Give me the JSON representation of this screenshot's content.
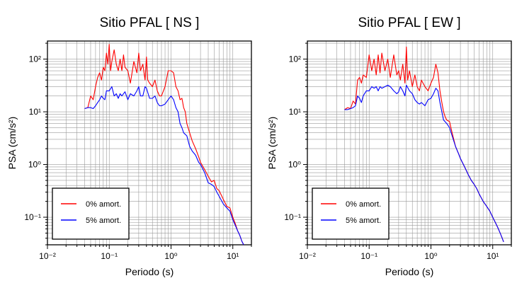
{
  "chart_data": [
    {
      "type": "line",
      "title": "Sitio PFAL [ NS ]",
      "xlabel": "Periodo (s)",
      "ylabel": "PSA (cm/s²)",
      "xscale": "log",
      "yscale": "log",
      "xlim": [
        0.01,
        20
      ],
      "ylim": [
        0.03,
        220
      ],
      "grid": true,
      "legend_position": "bottom-left",
      "x_tick_labels": [
        "10⁻²",
        "10⁻¹",
        "10⁰",
        "10¹"
      ],
      "y_tick_labels": [
        "10⁻¹",
        "10⁰",
        "10¹",
        "10²"
      ],
      "series": [
        {
          "name": "0% amort.",
          "color": "#ff0000",
          "x": [
            0.04,
            0.045,
            0.05,
            0.055,
            0.06,
            0.065,
            0.07,
            0.075,
            0.08,
            0.085,
            0.09,
            0.095,
            0.1,
            0.105,
            0.11,
            0.12,
            0.13,
            0.14,
            0.15,
            0.16,
            0.17,
            0.18,
            0.2,
            0.22,
            0.25,
            0.28,
            0.3,
            0.32,
            0.35,
            0.38,
            0.4,
            0.42,
            0.45,
            0.5,
            0.55,
            0.6,
            0.65,
            0.7,
            0.8,
            0.9,
            1.0,
            1.1,
            1.2,
            1.3,
            1.4,
            1.5,
            1.6,
            1.7,
            1.8,
            2.0,
            2.2,
            2.5,
            2.8,
            3.0,
            3.5,
            4.0,
            4.5,
            5.0,
            5.5,
            6.0,
            7.0,
            8.0,
            9.0,
            10.0,
            11.0,
            12.0,
            13.0,
            14.0,
            15.0
          ],
          "values": [
            11.5,
            12,
            20,
            17,
            30,
            45,
            55,
            40,
            70,
            60,
            130,
            80,
            190,
            60,
            90,
            150,
            80,
            60,
            100,
            60,
            120,
            70,
            60,
            35,
            90,
            55,
            130,
            60,
            80,
            40,
            110,
            40,
            35,
            30,
            40,
            25,
            20,
            20,
            30,
            60,
            60,
            55,
            30,
            25,
            17,
            18,
            12,
            10,
            6,
            4,
            2.8,
            2.0,
            1.4,
            1.1,
            0.8,
            0.6,
            0.47,
            0.5,
            0.35,
            0.32,
            0.22,
            0.16,
            0.15,
            0.1,
            0.075,
            0.055,
            0.045,
            0.035,
            0.03
          ]
        },
        {
          "name": "5% amort.",
          "color": "#0000ff",
          "x": [
            0.04,
            0.045,
            0.05,
            0.055,
            0.06,
            0.065,
            0.07,
            0.075,
            0.08,
            0.085,
            0.09,
            0.1,
            0.11,
            0.12,
            0.13,
            0.14,
            0.15,
            0.16,
            0.18,
            0.2,
            0.22,
            0.25,
            0.28,
            0.3,
            0.32,
            0.35,
            0.38,
            0.4,
            0.45,
            0.5,
            0.55,
            0.6,
            0.65,
            0.7,
            0.8,
            0.9,
            1.0,
            1.1,
            1.2,
            1.3,
            1.4,
            1.5,
            1.6,
            1.8,
            2.0,
            2.2,
            2.5,
            2.8,
            3.0,
            3.5,
            4.0,
            4.5,
            5.0,
            5.5,
            6.0,
            7.0,
            8.0,
            9.0,
            10.0,
            11.0,
            12.0,
            13.0,
            14.0,
            15.0
          ],
          "values": [
            11.5,
            12,
            12,
            11.5,
            13,
            15,
            17,
            20,
            18,
            17,
            25,
            25,
            30,
            20,
            22,
            18,
            22,
            20,
            24,
            17,
            22,
            20,
            25,
            30,
            20,
            20,
            30,
            28,
            18,
            18,
            20,
            15,
            13,
            13,
            14,
            17,
            20,
            17,
            12,
            10,
            6,
            5,
            4,
            3.5,
            2.2,
            1.8,
            1.5,
            1.1,
            1.0,
            0.7,
            0.45,
            0.42,
            0.38,
            0.3,
            0.25,
            0.18,
            0.15,
            0.13,
            0.09,
            0.07,
            0.055,
            0.045,
            0.035,
            0.03
          ]
        }
      ]
    },
    {
      "type": "line",
      "title": "Sitio PFAL [ EW ]",
      "xlabel": "Periodo (s)",
      "ylabel": "PSA (cm/s²)",
      "xscale": "log",
      "yscale": "log",
      "xlim": [
        0.01,
        20
      ],
      "ylim": [
        0.03,
        220
      ],
      "grid": true,
      "legend_position": "bottom-left",
      "x_tick_labels": [
        "10⁻²",
        "10⁻¹",
        "10⁰",
        "10¹"
      ],
      "y_tick_labels": [
        "10⁻¹",
        "10⁰",
        "10¹",
        "10²"
      ],
      "series": [
        {
          "name": "0% amort.",
          "color": "#ff0000",
          "x": [
            0.04,
            0.045,
            0.05,
            0.055,
            0.06,
            0.065,
            0.07,
            0.075,
            0.08,
            0.09,
            0.1,
            0.11,
            0.12,
            0.13,
            0.14,
            0.15,
            0.16,
            0.18,
            0.2,
            0.22,
            0.25,
            0.28,
            0.3,
            0.32,
            0.35,
            0.38,
            0.4,
            0.42,
            0.45,
            0.5,
            0.55,
            0.6,
            0.65,
            0.7,
            0.8,
            0.9,
            1.0,
            1.1,
            1.2,
            1.3,
            1.4,
            1.5,
            1.6,
            1.7,
            1.8,
            2.0,
            2.2,
            2.5,
            2.8,
            3.0,
            3.5,
            4.0,
            4.5,
            5.0,
            5.5,
            6.0,
            7.0,
            8.0,
            9.0,
            10.0,
            11.0,
            12.0,
            13.0,
            14.0,
            15.0
          ],
          "values": [
            11,
            12,
            11.5,
            16,
            14,
            40,
            45,
            35,
            50,
            45,
            120,
            60,
            100,
            50,
            120,
            55,
            130,
            60,
            100,
            45,
            120,
            50,
            60,
            40,
            80,
            35,
            170,
            40,
            60,
            30,
            50,
            30,
            25,
            40,
            30,
            25,
            35,
            45,
            80,
            55,
            25,
            15,
            10,
            8,
            7,
            6.5,
            4,
            2.2,
            1.6,
            1.3,
            0.9,
            0.65,
            0.5,
            0.42,
            0.35,
            0.28,
            0.2,
            0.16,
            0.13,
            0.1,
            0.08,
            0.065,
            0.052,
            0.042,
            0.034
          ]
        },
        {
          "name": "5% amort.",
          "color": "#0000ff",
          "x": [
            0.04,
            0.045,
            0.05,
            0.055,
            0.06,
            0.065,
            0.07,
            0.075,
            0.08,
            0.09,
            0.1,
            0.11,
            0.12,
            0.13,
            0.14,
            0.15,
            0.16,
            0.18,
            0.2,
            0.22,
            0.25,
            0.28,
            0.3,
            0.32,
            0.35,
            0.38,
            0.4,
            0.45,
            0.5,
            0.55,
            0.6,
            0.65,
            0.7,
            0.8,
            0.9,
            1.0,
            1.1,
            1.2,
            1.3,
            1.4,
            1.5,
            1.6,
            1.8,
            2.0,
            2.2,
            2.5,
            2.8,
            3.0,
            3.5,
            4.0,
            4.5,
            5.0,
            5.5,
            6.0,
            7.0,
            8.0,
            9.0,
            10.0,
            11.0,
            12.0,
            13.0,
            14.0,
            15.0
          ],
          "values": [
            11,
            11,
            11.5,
            12,
            13,
            20,
            18,
            15,
            20,
            25,
            25,
            30,
            28,
            30,
            25,
            30,
            28,
            30,
            32,
            30,
            25,
            22,
            24,
            30,
            25,
            20,
            32,
            25,
            22,
            17,
            15,
            14,
            15,
            13,
            17,
            18,
            22,
            28,
            25,
            15,
            10,
            7,
            6,
            5,
            3.5,
            2.2,
            1.6,
            1.3,
            0.9,
            0.65,
            0.5,
            0.42,
            0.35,
            0.28,
            0.2,
            0.16,
            0.13,
            0.1,
            0.08,
            0.065,
            0.052,
            0.042,
            0.034
          ]
        }
      ]
    }
  ]
}
